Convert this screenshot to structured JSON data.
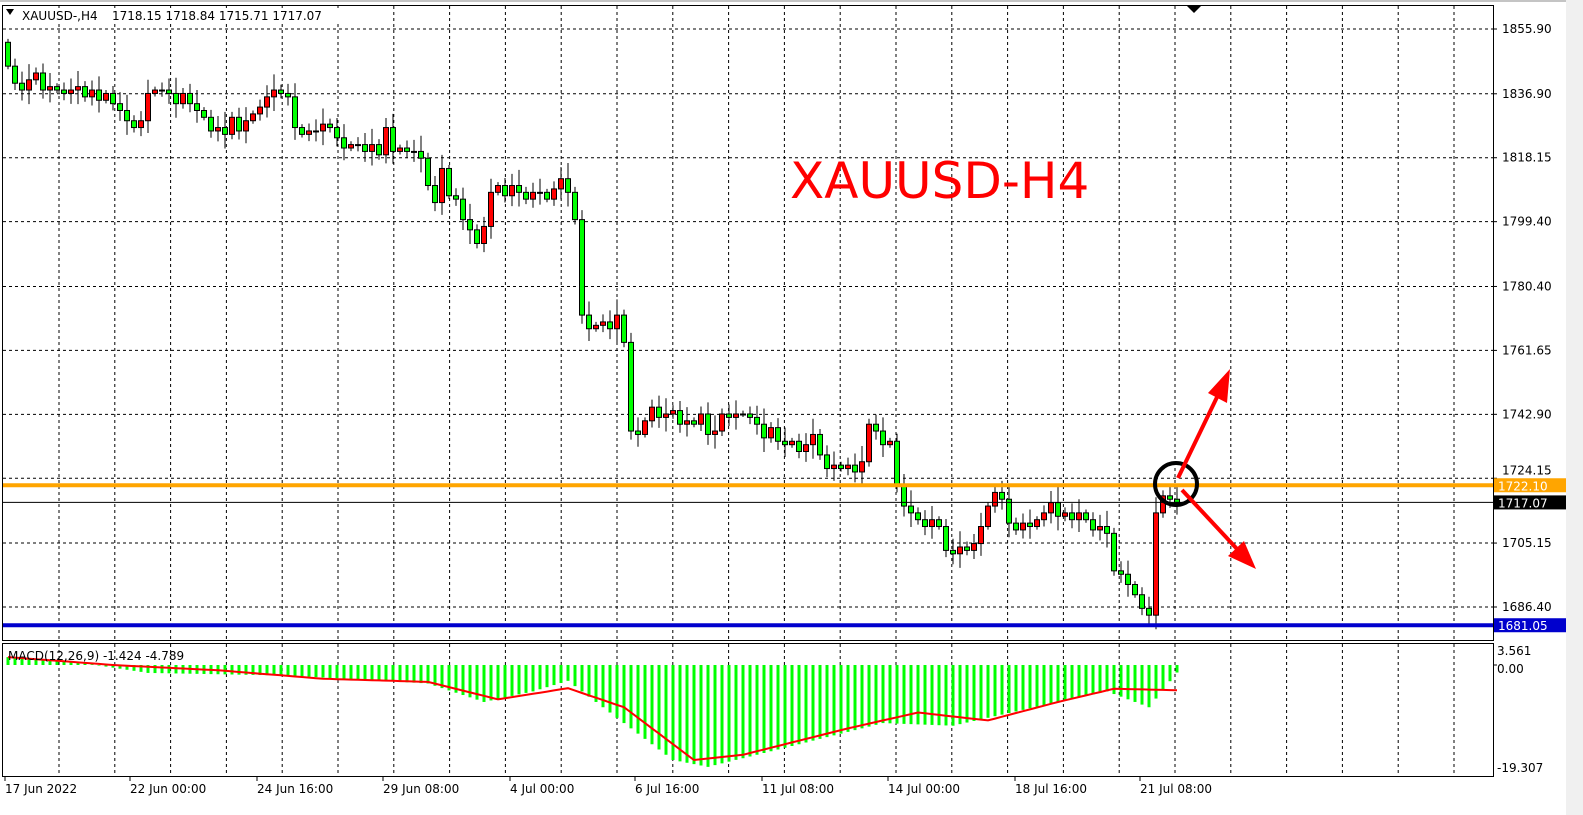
{
  "header": {
    "symbol": "XAUUSD-,H4",
    "ohlc": "1718.15 1718.84 1715.71 1717.07"
  },
  "annotation": {
    "title": "XAUUSD-H4",
    "title_color": "#ff0000",
    "circle_color": "#000000",
    "arrow_color": "#ff0000",
    "arrows": [
      "up",
      "down"
    ]
  },
  "colors": {
    "bull": "#ff0000",
    "bear": "#00ff00",
    "resistance": "#ffa500",
    "support": "#0000cd",
    "macd_hist": "#00ff00",
    "macd_signal": "#ff0000"
  },
  "levels": {
    "resistance": {
      "value": 1722.1,
      "label": "1722.10"
    },
    "support": {
      "value": 1681.05,
      "label": "1681.05"
    },
    "current": {
      "value": 1717.07,
      "label": "1717.07"
    }
  },
  "macd": {
    "label": "MACD(12,26,9) -1.424 -4.789",
    "axis_labels": [
      "3.561",
      "0.00",
      "-19.307"
    ]
  },
  "chart_data": [
    {
      "type": "candlestick",
      "title": "",
      "ylim": [
        1678,
        1862
      ],
      "y_ticks": [
        "1855.90",
        "1836.90",
        "1818.15",
        "1799.40",
        "1780.40",
        "1761.65",
        "1742.90",
        "1724.15",
        "1705.15",
        "1686.40"
      ],
      "x_ticks": [
        "17 Jun 2022",
        "22 Jun 00:00",
        "24 Jun 16:00",
        "29 Jun 08:00",
        "4 Jul 00:00",
        "6 Jul 16:00",
        "11 Jul 08:00",
        "14 Jul 00:00",
        "18 Jul 16:00",
        "21 Jul 08:00"
      ],
      "grid": true,
      "first_open": 1852,
      "close": [
        1845,
        1840,
        1838,
        1841,
        1843,
        1838,
        1839,
        1838,
        1837,
        1838,
        1839,
        1836,
        1838,
        1835,
        1837,
        1834,
        1832,
        1829,
        1827,
        1829,
        1837,
        1838,
        1838,
        1837,
        1834,
        1837,
        1834,
        1832,
        1830,
        1826,
        1827,
        1825,
        1830,
        1826,
        1829,
        1831,
        1833,
        1836,
        1838,
        1837,
        1836,
        1827,
        1825,
        1826,
        1826,
        1828,
        1827,
        1824,
        1821,
        1822,
        1822,
        1820,
        1822,
        1819,
        1827,
        1820,
        1821,
        1820,
        1820,
        1818,
        1810,
        1805,
        1815,
        1807,
        1806,
        1800,
        1797,
        1793,
        1798,
        1808,
        1810,
        1807,
        1810,
        1808,
        1806,
        1808,
        1808,
        1806,
        1809,
        1812,
        1808,
        1800,
        1772,
        1768,
        1769,
        1770,
        1768,
        1772,
        1764,
        1738,
        1737,
        1741,
        1745,
        1742,
        1743,
        1744,
        1740,
        1741,
        1740,
        1743,
        1737,
        1738,
        1743,
        1742,
        1743,
        1743,
        1742,
        1740,
        1736,
        1739,
        1735,
        1734,
        1735,
        1732,
        1734,
        1737,
        1731,
        1727,
        1728,
        1727,
        1728,
        1726,
        1729,
        1740,
        1738,
        1734,
        1735,
        1722,
        1716,
        1714,
        1712,
        1710,
        1712,
        1710,
        1703,
        1702,
        1704,
        1703,
        1705,
        1710,
        1716,
        1720,
        1718,
        1711,
        1709,
        1711,
        1710,
        1712,
        1714,
        1717,
        1713,
        1714,
        1712,
        1714,
        1712,
        1709,
        1710,
        1708,
        1697,
        1696,
        1693,
        1690,
        1686,
        1684,
        1714,
        1719,
        1718,
        1717.07
      ]
    },
    {
      "type": "bar+line",
      "title": "MACD(12,26,9)",
      "ylim": [
        -19.307,
        3.561
      ],
      "histogram_points": [
        [
          0,
          1.5
        ],
        [
          10,
          0.5
        ],
        [
          20,
          -1.5
        ],
        [
          40,
          -2
        ],
        [
          60,
          -3.5
        ],
        [
          68,
          -7
        ],
        [
          75,
          -5
        ],
        [
          80,
          -3
        ],
        [
          82,
          -5
        ],
        [
          89,
          -12
        ],
        [
          95,
          -18
        ],
        [
          100,
          -19.3
        ],
        [
          110,
          -16
        ],
        [
          125,
          -11
        ],
        [
          135,
          -11.5
        ],
        [
          140,
          -10
        ],
        [
          150,
          -7
        ],
        [
          157,
          -5
        ],
        [
          163,
          -8
        ],
        [
          167,
          -1.424
        ]
      ],
      "signal_points": [
        [
          0,
          1.5
        ],
        [
          15,
          0
        ],
        [
          30,
          -1
        ],
        [
          45,
          -2.6
        ],
        [
          60,
          -3.2
        ],
        [
          70,
          -6.5
        ],
        [
          80,
          -4.4
        ],
        [
          88,
          -8
        ],
        [
          98,
          -18
        ],
        [
          105,
          -17
        ],
        [
          120,
          -12
        ],
        [
          130,
          -9
        ],
        [
          140,
          -10.5
        ],
        [
          150,
          -7
        ],
        [
          158,
          -4.5
        ],
        [
          167,
          -4.789
        ]
      ]
    }
  ]
}
